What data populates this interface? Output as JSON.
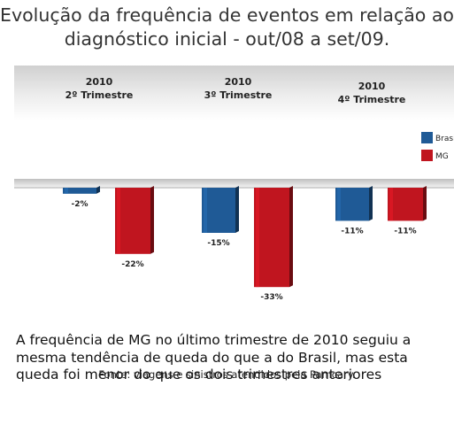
{
  "title": {
    "line1": "Evolução da frequência de eventos em relação ao",
    "line2": "diagnóstico inicial - out/08 a set/09."
  },
  "caption": "A frequência de MG no último trimestre de 2010 seguiu a mesma tendência de queda do que a do Brasil, mas esta queda foi menor do que os dois trimestres anteriores",
  "source": "Fonte: viagens e sinistros atendidos pela Pamcary.",
  "chart_data": {
    "type": "bar",
    "categories": [
      {
        "year": "2010",
        "label": "2º Trimestre"
      },
      {
        "year": "2010",
        "label": "3º Trimestre"
      },
      {
        "year": "2010",
        "label": "4º Trimestre"
      }
    ],
    "series": [
      {
        "name": "Brasil",
        "color": "#1f5a96",
        "values": [
          -2,
          -15,
          -11
        ],
        "labels": [
          "-2%",
          "-15%",
          "-11%"
        ]
      },
      {
        "name": "MG",
        "color": "#c0151f",
        "values": [
          -22,
          -33,
          -11
        ],
        "labels": [
          "-22%",
          "-33%",
          "-11%"
        ]
      }
    ],
    "ylim": [
      -35,
      0
    ],
    "legend_position": "right",
    "grid": false
  }
}
